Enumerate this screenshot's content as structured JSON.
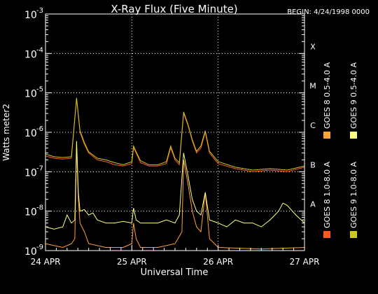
{
  "chart_data": {
    "type": "line",
    "title": "X-Ray Flux (Five Minute)",
    "begin_label": "BEGIN: 4/24/1998 0000",
    "xlabel": "Universal Time",
    "ylabel": "Watts meter2",
    "x_ticks": [
      {
        "label": "24 APR",
        "day": 0
      },
      {
        "label": "25 APR",
        "day": 1
      },
      {
        "label": "26 APR",
        "day": 2
      },
      {
        "label": "27 APR",
        "day": 3
      }
    ],
    "xlim_days": [
      0,
      3
    ],
    "y_scale": "log",
    "ylim": [
      1e-09,
      0.001
    ],
    "y_ticks": [
      {
        "base": "10",
        "exp": "-3",
        "value": 0.001
      },
      {
        "base": "10",
        "exp": "-4",
        "value": 0.0001
      },
      {
        "base": "10",
        "exp": "-5",
        "value": 1e-05
      },
      {
        "base": "10",
        "exp": "-6",
        "value": 1e-06
      },
      {
        "base": "10",
        "exp": "-7",
        "value": 1e-07
      },
      {
        "base": "10",
        "exp": "-8",
        "value": 1e-08
      },
      {
        "base": "10",
        "exp": "-9",
        "value": 1e-09
      }
    ],
    "flare_classes": [
      {
        "label": "X",
        "value": 0.0001
      },
      {
        "label": "M",
        "value": 1e-05
      },
      {
        "label": "C",
        "value": 1e-06
      },
      {
        "label": "B",
        "value": 1e-07
      },
      {
        "label": "A",
        "value": 1e-08
      }
    ],
    "grid": true,
    "legend_position": "right-vertical",
    "series": [
      {
        "name": "GOES 8 1.0-8.0 A",
        "color": "#ff5a1e",
        "x": [
          0,
          0.1,
          0.2,
          0.3,
          0.36,
          0.4,
          0.45,
          0.5,
          0.6,
          0.7,
          0.8,
          0.9,
          1.0,
          1.02,
          1.05,
          1.1,
          1.2,
          1.3,
          1.4,
          1.45,
          1.5,
          1.55,
          1.6,
          1.65,
          1.7,
          1.75,
          1.8,
          1.85,
          1.9,
          2.0,
          2.2,
          2.4,
          2.6,
          2.8,
          3.0
        ],
        "y": [
          2.5e-07,
          2.2e-07,
          2.1e-07,
          2.2e-07,
          7e-06,
          1e-06,
          5e-07,
          3e-07,
          2e-07,
          1.8e-07,
          1.5e-07,
          1.4e-07,
          1.6e-07,
          4e-07,
          3e-07,
          1.7e-07,
          1.4e-07,
          1.4e-07,
          1.6e-07,
          4e-07,
          2e-07,
          1.5e-07,
          3e-06,
          1.5e-06,
          6e-07,
          3e-07,
          4e-07,
          1e-06,
          3e-07,
          1.6e-07,
          1.2e-07,
          1e-07,
          1.1e-07,
          1e-07,
          1.3e-07
        ]
      },
      {
        "name": "GOES 8 0.5-4.0 A",
        "color": "#ffa23a",
        "x": [
          0,
          0.2,
          0.3,
          0.34,
          0.36,
          0.38,
          0.4,
          0.45,
          0.5,
          0.7,
          0.9,
          1.0,
          1.02,
          1.05,
          1.1,
          1.3,
          1.5,
          1.58,
          1.6,
          1.65,
          1.7,
          1.75,
          1.8,
          1.85,
          1.9,
          2.0,
          2.5,
          3.0
        ],
        "y": [
          1.5e-09,
          1.2e-09,
          1.5e-09,
          2e-09,
          5e-07,
          2e-08,
          5e-09,
          3e-09,
          1.5e-09,
          1.2e-09,
          1.2e-09,
          1.5e-09,
          5e-09,
          2e-09,
          1.2e-09,
          1.2e-09,
          1.5e-09,
          3e-09,
          2e-07,
          5e-08,
          1e-08,
          4e-09,
          3e-09,
          3e-08,
          2e-09,
          1.2e-09,
          1.1e-09,
          1.2e-09
        ]
      },
      {
        "name": "GOES 9 1.0-8.0 A",
        "color": "#c8c81e",
        "x": [
          0,
          0.1,
          0.2,
          0.3,
          0.36,
          0.4,
          0.45,
          0.5,
          0.6,
          0.7,
          0.8,
          0.9,
          1.0,
          1.02,
          1.05,
          1.1,
          1.2,
          1.3,
          1.4,
          1.45,
          1.5,
          1.55,
          1.6,
          1.65,
          1.7,
          1.75,
          1.8,
          1.85,
          1.9,
          2.0,
          2.2,
          2.4,
          2.6,
          2.8,
          3.0
        ],
        "y": [
          2.8e-07,
          2.4e-07,
          2.3e-07,
          2.4e-07,
          7.5e-06,
          1.1e-06,
          5.5e-07,
          3.2e-07,
          2.2e-07,
          2e-07,
          1.7e-07,
          1.5e-07,
          1.8e-07,
          4.5e-07,
          3.2e-07,
          1.9e-07,
          1.5e-07,
          1.5e-07,
          1.8e-07,
          4.5e-07,
          2.2e-07,
          1.7e-07,
          3.3e-06,
          1.6e-06,
          6.5e-07,
          3.3e-07,
          4.5e-07,
          1.1e-06,
          3.3e-07,
          1.8e-07,
          1.3e-07,
          1.1e-07,
          1.2e-07,
          1.1e-07,
          1.4e-07
        ]
      },
      {
        "name": "GOES 9 0.5-4.0 A",
        "color": "#ffff80",
        "x": [
          0,
          0.1,
          0.2,
          0.25,
          0.3,
          0.34,
          0.36,
          0.38,
          0.4,
          0.45,
          0.5,
          0.55,
          0.6,
          0.7,
          0.8,
          0.9,
          1.0,
          1.02,
          1.05,
          1.1,
          1.2,
          1.3,
          1.4,
          1.5,
          1.55,
          1.6,
          1.65,
          1.7,
          1.75,
          1.8,
          1.85,
          1.9,
          2.0,
          2.1,
          2.2,
          2.3,
          2.4,
          2.5,
          2.6,
          2.7,
          2.75,
          2.8,
          2.9,
          3.0
        ],
        "y": [
          4e-09,
          3.5e-09,
          4e-09,
          8e-09,
          5e-09,
          6e-09,
          6e-07,
          3e-08,
          1e-08,
          1.1e-08,
          8e-09,
          9e-09,
          6e-09,
          5e-09,
          5e-09,
          5.5e-09,
          5e-09,
          1.2e-08,
          6e-09,
          5e-09,
          5e-09,
          5e-09,
          6e-09,
          5e-09,
          8e-09,
          3e-07,
          8e-08,
          2e-08,
          1e-08,
          8e-09,
          3e-08,
          6e-09,
          5e-09,
          4e-09,
          6e-09,
          5e-09,
          5e-09,
          4e-09,
          6e-09,
          1e-08,
          1.6e-08,
          1.4e-08,
          8e-09,
          5e-09
        ]
      }
    ]
  }
}
